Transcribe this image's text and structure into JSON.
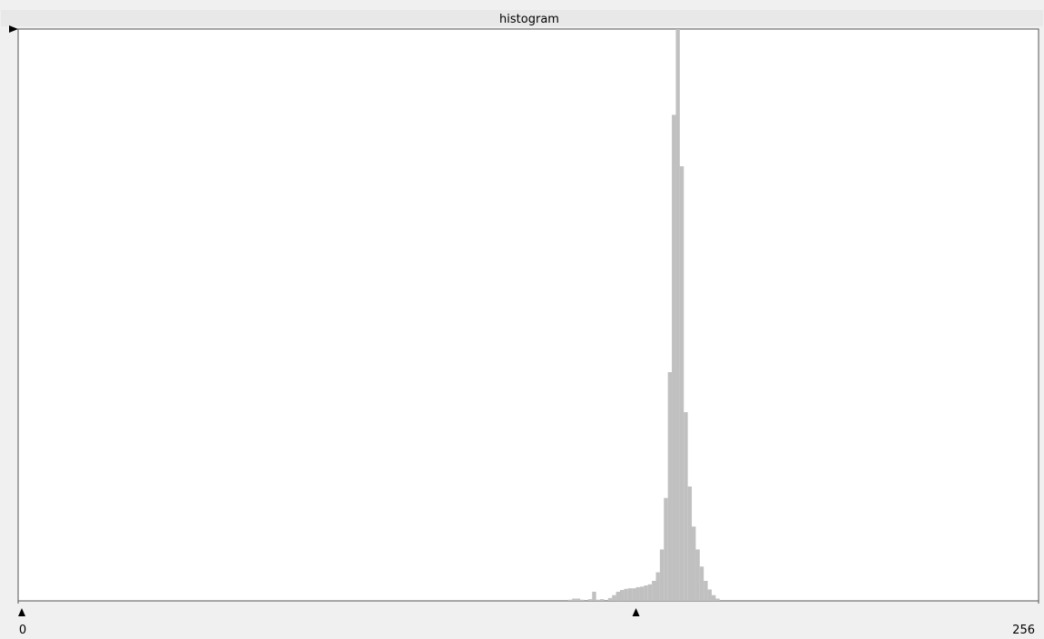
{
  "chart_data": {
    "type": "histogram",
    "title": "histogram",
    "bins": [
      138,
      139,
      140,
      141,
      142,
      143,
      144,
      145,
      146,
      147,
      148,
      149,
      150,
      151,
      152,
      153,
      154,
      155,
      156,
      157,
      158,
      159,
      160,
      161,
      162,
      163,
      164,
      165,
      166,
      167,
      168,
      169,
      170,
      171,
      172,
      173,
      174,
      175,
      176,
      177
    ],
    "values": [
      0.2,
      0.4,
      0.4,
      0.2,
      0,
      0.3,
      1.6,
      0.2,
      0.3,
      0,
      0.5,
      1.0,
      1.6,
      1.9,
      2.1,
      2.2,
      2.2,
      2.4,
      2.5,
      2.7,
      2.9,
      3.5,
      5,
      9,
      18,
      40,
      85,
      100,
      76,
      33,
      20,
      13,
      9,
      6,
      3.5,
      2,
      1,
      0.4,
      0
    ],
    "color": "#c0c0c0",
    "xlim": [
      0,
      256
    ],
    "xticks": [
      0,
      256
    ],
    "ylim": [
      0,
      100
    ],
    "markers": [
      0,
      155
    ]
  }
}
